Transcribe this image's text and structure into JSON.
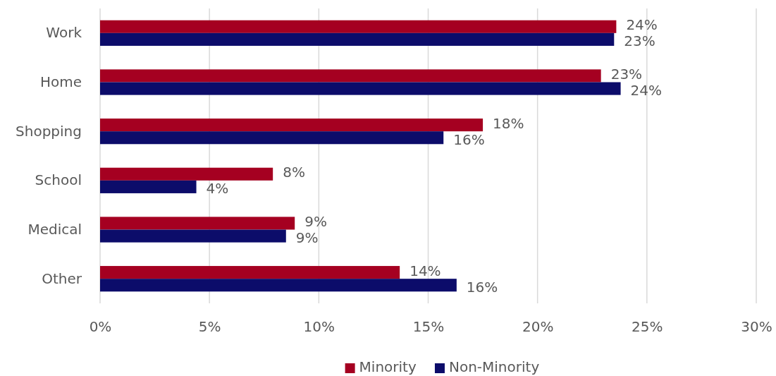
{
  "chart_data": {
    "type": "bar",
    "orientation": "horizontal",
    "categories": [
      "Work",
      "Home",
      "Shopping",
      "School",
      "Medical",
      "Other"
    ],
    "series": [
      {
        "name": "Minority",
        "color": "#a50021",
        "values": [
          23.6,
          22.9,
          17.5,
          7.9,
          8.9,
          13.7
        ],
        "value_labels": [
          "24%",
          "23%",
          "18%",
          "8%",
          "9%",
          "14%"
        ]
      },
      {
        "name": "Non-Minority",
        "color": "#0c0c6a",
        "values": [
          23.5,
          23.8,
          15.7,
          4.4,
          8.5,
          16.3
        ],
        "value_labels": [
          "23%",
          "24%",
          "16%",
          "4%",
          "9%",
          "16%"
        ]
      }
    ],
    "xlim": [
      0,
      30
    ],
    "xticks": [
      {
        "value": 0,
        "label": "0%"
      },
      {
        "value": 5,
        "label": "5%"
      },
      {
        "value": 10,
        "label": "10%"
      },
      {
        "value": 15,
        "label": "15%"
      },
      {
        "value": 20,
        "label": "20%"
      },
      {
        "value": 25,
        "label": "25%"
      },
      {
        "value": 30,
        "label": "30%"
      }
    ],
    "grid": "x",
    "legend": "bottom"
  }
}
